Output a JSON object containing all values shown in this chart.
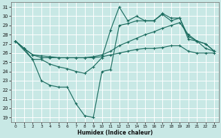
{
  "xlabel": "Humidex (Indice chaleur)",
  "xlim": [
    -0.5,
    23.5
  ],
  "ylim": [
    18.5,
    31.5
  ],
  "yticks": [
    19,
    20,
    21,
    22,
    23,
    24,
    25,
    26,
    27,
    28,
    29,
    30,
    31
  ],
  "xticks": [
    0,
    1,
    2,
    3,
    4,
    5,
    6,
    7,
    8,
    9,
    10,
    11,
    12,
    13,
    14,
    15,
    16,
    17,
    18,
    19,
    20,
    21,
    22,
    23
  ],
  "bg_color": "#c8e8e5",
  "grid_color": "#ffffff",
  "line_color": "#1a6b5e",
  "lines": [
    {
      "x": [
        0,
        1,
        2,
        3,
        4,
        5,
        6,
        7,
        8,
        9,
        10,
        11,
        12,
        13,
        14,
        15,
        16,
        17,
        18,
        19,
        20,
        21,
        22,
        23
      ],
      "y": [
        27.3,
        26.5,
        25.8,
        25.7,
        25.6,
        25.5,
        25.5,
        25.5,
        25.5,
        25.6,
        25.8,
        26.2,
        26.8,
        27.2,
        27.6,
        28.0,
        28.3,
        28.7,
        29.0,
        29.3,
        28.0,
        27.3,
        26.5,
        26.2
      ]
    },
    {
      "x": [
        0,
        1,
        2,
        3,
        4,
        5,
        6,
        7,
        8,
        9,
        10,
        11,
        12,
        13,
        14,
        15,
        16,
        17,
        18,
        19,
        20,
        21,
        22,
        23
      ],
      "y": [
        27.3,
        26.5,
        25.3,
        25.3,
        24.8,
        24.5,
        24.3,
        24.0,
        23.8,
        24.5,
        25.5,
        28.5,
        31.0,
        29.5,
        30.0,
        29.5,
        29.5,
        30.3,
        29.8,
        29.8,
        27.8,
        27.3,
        27.0,
        26.2
      ]
    },
    {
      "x": [
        0,
        2,
        3,
        4,
        5,
        6,
        7,
        8,
        9,
        10,
        11,
        12,
        13,
        14,
        15,
        16,
        17,
        18,
        19,
        20,
        21,
        22,
        23
      ],
      "y": [
        27.3,
        25.3,
        23.0,
        22.5,
        22.3,
        22.3,
        20.5,
        19.2,
        19.0,
        24.0,
        24.2,
        29.0,
        29.2,
        29.5,
        29.5,
        29.5,
        30.2,
        29.5,
        29.8,
        27.5,
        27.3,
        27.0,
        26.2
      ]
    },
    {
      "x": [
        0,
        1,
        2,
        3,
        4,
        5,
        6,
        7,
        8,
        9,
        10,
        11,
        12,
        13,
        14,
        15,
        16,
        17,
        18,
        19,
        20,
        21,
        22,
        23
      ],
      "y": [
        27.3,
        26.5,
        25.8,
        25.5,
        25.5,
        25.5,
        25.5,
        25.5,
        25.5,
        25.5,
        25.6,
        25.8,
        26.0,
        26.2,
        26.4,
        26.5,
        26.5,
        26.6,
        26.8,
        26.8,
        26.2,
        26.0,
        26.0,
        26.0
      ]
    }
  ]
}
